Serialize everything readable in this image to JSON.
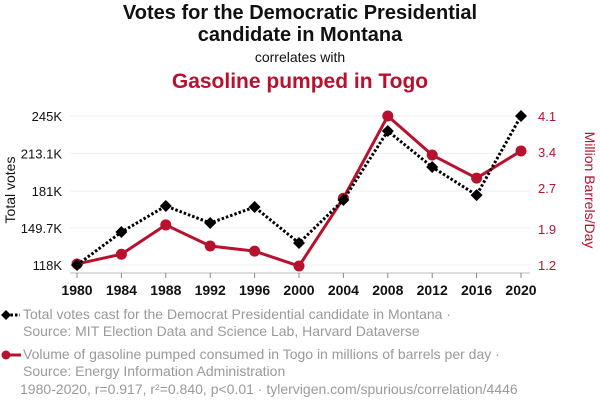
{
  "header": {
    "title_line1": "Votes for the Democratic Presidential",
    "title_line2": "candidate in Montana",
    "correlates": "correlates with",
    "title2": "Gasoline pumped in Togo"
  },
  "chart_data": {
    "type": "line",
    "title": "Votes for the Democratic Presidential candidate in Montana correlates with Gasoline pumped in Togo",
    "x": [
      1980,
      1984,
      1988,
      1992,
      1996,
      2000,
      2004,
      2008,
      2012,
      2016,
      2020
    ],
    "x_ticks": [
      "1980",
      "1984",
      "1988",
      "1992",
      "1996",
      "2000",
      "2004",
      "2008",
      "2012",
      "2016",
      "2020"
    ],
    "ylabel_left": "Total votes",
    "ylabel_right": "Million Barrels/Day",
    "ylim_left": [
      118,
      245
    ],
    "ylim_right": [
      1.2,
      4.1
    ],
    "left_ticks": [
      {
        "v": 118,
        "label": "118K"
      },
      {
        "v": 149.7,
        "label": "149.7K"
      },
      {
        "v": 181,
        "label": "181K"
      },
      {
        "v": 213.1,
        "label": "213.1K"
      },
      {
        "v": 245,
        "label": "245K"
      }
    ],
    "right_ticks": [
      {
        "v": 1.2,
        "label": "1.2"
      },
      {
        "v": 1.9,
        "label": "1.9"
      },
      {
        "v": 2.7,
        "label": "2.7"
      },
      {
        "v": 3.4,
        "label": "3.4"
      },
      {
        "v": 4.1,
        "label": "4.1"
      }
    ],
    "grid": true,
    "series": [
      {
        "name": "Total votes cast for the Democrat Presidential candidate in Montana",
        "axis": "left",
        "color": "#000000",
        "marker": "diamond",
        "dashed": true,
        "values": [
          118,
          146.1,
          168.3,
          153.8,
          167.4,
          136.7,
          173.4,
          232.2,
          201.5,
          177.6,
          245
        ]
      },
      {
        "name": "Volume of gasoline pumped consumed in Togo in millions of barrels per day",
        "axis": "right",
        "color": "#b8112e",
        "marker": "circle",
        "dashed": false,
        "values": [
          1.22,
          1.41,
          1.98,
          1.57,
          1.47,
          1.18,
          2.5,
          4.1,
          3.34,
          2.89,
          3.42
        ]
      }
    ]
  },
  "legend": {
    "s1_line1": "Total votes cast for the Democrat Presidential candidate in Montana ·",
    "s1_line2": "Source: MIT Election Data and Science Lab, Harvard Dataverse",
    "s2_line1": "Volume of gasoline pumped consumed in Togo in millions of barrels per day ·",
    "s2_line2": "Source: Energy Information Administration"
  },
  "footer": "1980-2020, r=0.917, r²=0.840, p<0.01 · tylervigen.com/spurious/correlation/4446"
}
